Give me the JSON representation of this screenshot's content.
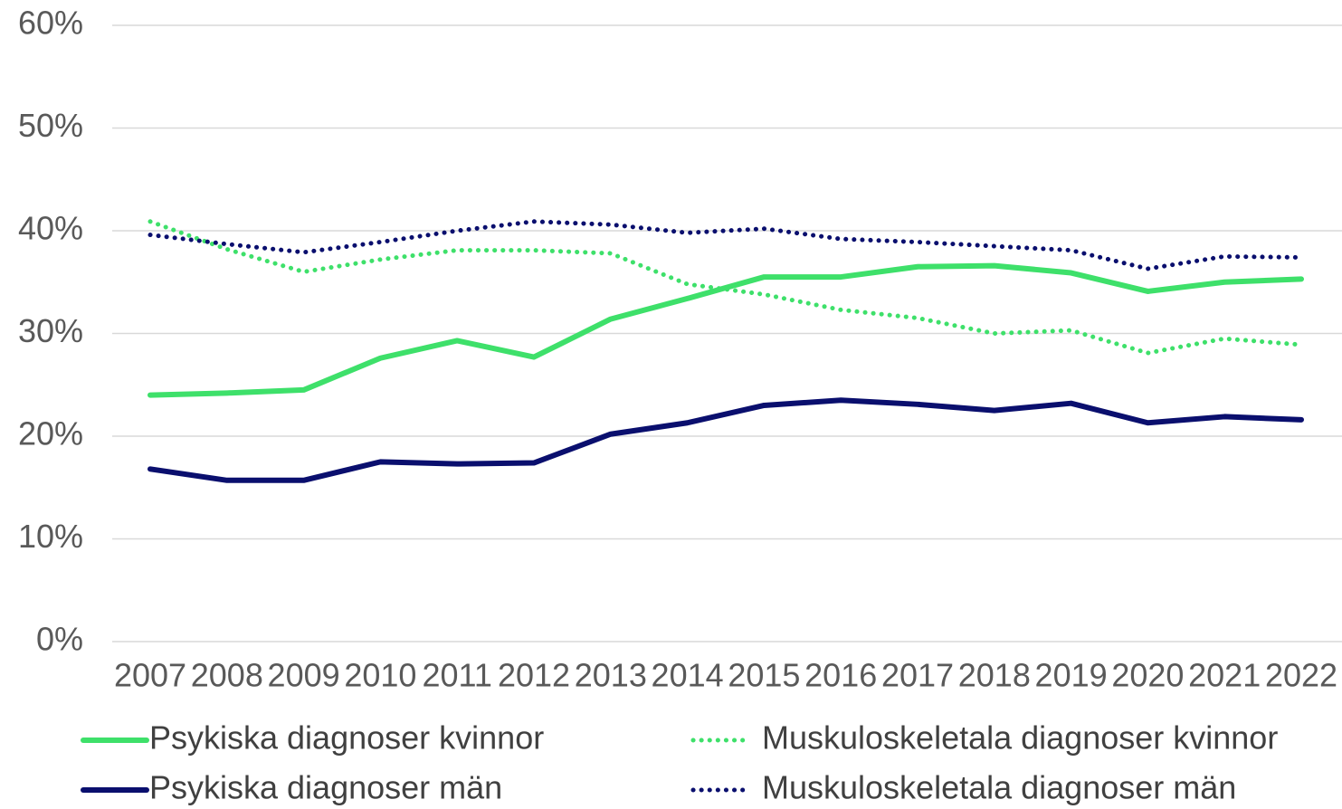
{
  "chart_data": {
    "type": "line",
    "categories": [
      "2007",
      "2008",
      "2009",
      "2010",
      "2011",
      "2012",
      "2013",
      "2014",
      "2015",
      "2016",
      "2017",
      "2018",
      "2019",
      "2020",
      "2021",
      "2022"
    ],
    "series": [
      {
        "name": "Psykiska diagnoser kvinnor",
        "color": "#3ee06a",
        "style": "solid",
        "values": [
          24.0,
          24.2,
          24.5,
          27.6,
          29.3,
          27.7,
          31.4,
          33.4,
          35.5,
          35.5,
          36.5,
          36.6,
          35.9,
          34.1,
          35.0,
          35.3
        ]
      },
      {
        "name": "Muskuloskeletala diagnoser kvinnor",
        "color": "#3ee06a",
        "style": "dotted",
        "values": [
          40.9,
          38.2,
          36.0,
          37.2,
          38.1,
          38.1,
          37.8,
          34.8,
          33.8,
          32.3,
          31.5,
          30.0,
          30.3,
          28.1,
          29.5,
          28.9
        ]
      },
      {
        "name": "Psykiska diagnoser män",
        "color": "#0a0f6e",
        "style": "solid",
        "values": [
          16.8,
          15.7,
          15.7,
          17.5,
          17.3,
          17.4,
          20.2,
          21.3,
          23.0,
          23.5,
          23.1,
          22.5,
          23.2,
          21.3,
          21.9,
          21.6
        ]
      },
      {
        "name": "Muskuloskeletala diagnoser män",
        "color": "#0a0f6e",
        "style": "dotted",
        "values": [
          39.6,
          38.7,
          37.9,
          38.9,
          40.0,
          40.9,
          40.6,
          39.8,
          40.2,
          39.2,
          38.9,
          38.5,
          38.1,
          36.3,
          37.5,
          37.4
        ]
      }
    ],
    "ylim": [
      0,
      60
    ],
    "yticks": [
      {
        "value": 0,
        "label": "0%"
      },
      {
        "value": 10,
        "label": "10%"
      },
      {
        "value": 20,
        "label": "20%"
      },
      {
        "value": 30,
        "label": "30%"
      },
      {
        "value": 40,
        "label": "40%"
      },
      {
        "value": 50,
        "label": "50%"
      },
      {
        "value": 60,
        "label": "60%"
      }
    ],
    "grid": true,
    "legend": "bottom"
  }
}
